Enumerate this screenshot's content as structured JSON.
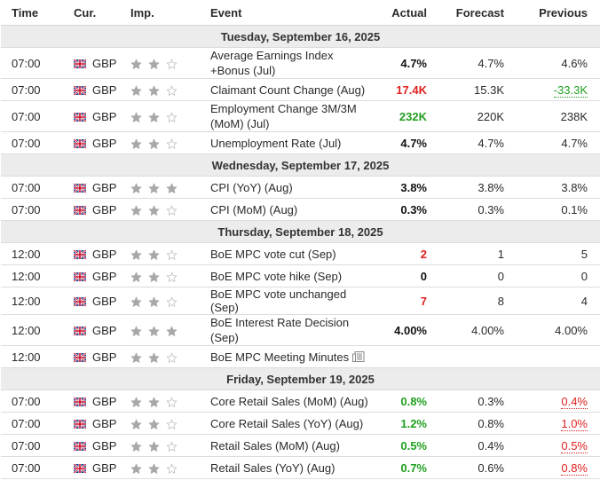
{
  "headers": {
    "time": "Time",
    "cur": "Cur.",
    "imp": "Imp.",
    "event": "Event",
    "actual": "Actual",
    "forecast": "Forecast",
    "previous": "Previous"
  },
  "days": [
    "Tuesday, September 16, 2025",
    "Wednesday, September 17, 2025",
    "Thursday, September 18, 2025",
    "Friday, September 19, 2025"
  ],
  "rows": [
    {
      "time": "07:00",
      "cur": "GBP",
      "stars": 2,
      "event": "Average Earnings Index +Bonus (Jul)",
      "actual": "4.7%",
      "actual_color": "black",
      "forecast": "4.7%",
      "previous": "4.6%",
      "prev_color": "none"
    },
    {
      "time": "07:00",
      "cur": "GBP",
      "stars": 2,
      "event": "Claimant Count Change (Aug)",
      "actual": "17.4K",
      "actual_color": "red",
      "forecast": "15.3K",
      "previous": "-33.3K",
      "prev_color": "green"
    },
    {
      "time": "07:00",
      "cur": "GBP",
      "stars": 2,
      "event": "Employment Change 3M/3M (MoM) (Jul)",
      "actual": "232K",
      "actual_color": "green",
      "forecast": "220K",
      "previous": "238K",
      "prev_color": "none"
    },
    {
      "time": "07:00",
      "cur": "GBP",
      "stars": 2,
      "event": "Unemployment Rate (Jul)",
      "actual": "4.7%",
      "actual_color": "black",
      "forecast": "4.7%",
      "previous": "4.7%",
      "prev_color": "none"
    },
    {
      "time": "07:00",
      "cur": "GBP",
      "stars": 3,
      "event": "CPI (YoY) (Aug)",
      "actual": "3.8%",
      "actual_color": "black",
      "forecast": "3.8%",
      "previous": "3.8%",
      "prev_color": "none"
    },
    {
      "time": "07:00",
      "cur": "GBP",
      "stars": 2,
      "event": "CPI (MoM) (Aug)",
      "actual": "0.3%",
      "actual_color": "black",
      "forecast": "0.3%",
      "previous": "0.1%",
      "prev_color": "none"
    },
    {
      "time": "12:00",
      "cur": "GBP",
      "stars": 2,
      "event": "BoE MPC vote cut (Sep)",
      "actual": "2",
      "actual_color": "red",
      "forecast": "1",
      "previous": "5",
      "prev_color": "none"
    },
    {
      "time": "12:00",
      "cur": "GBP",
      "stars": 2,
      "event": "BoE MPC vote hike (Sep)",
      "actual": "0",
      "actual_color": "black",
      "forecast": "0",
      "previous": "0",
      "prev_color": "none"
    },
    {
      "time": "12:00",
      "cur": "GBP",
      "stars": 2,
      "event": "BoE MPC vote unchanged (Sep)",
      "actual": "7",
      "actual_color": "red",
      "forecast": "8",
      "previous": "4",
      "prev_color": "none"
    },
    {
      "time": "12:00",
      "cur": "GBP",
      "stars": 3,
      "event": "BoE Interest Rate Decision (Sep)",
      "actual": "4.00%",
      "actual_color": "black",
      "forecast": "4.00%",
      "previous": "4.00%",
      "prev_color": "none"
    },
    {
      "time": "12:00",
      "cur": "GBP",
      "stars": 2,
      "event": "BoE MPC Meeting Minutes",
      "actual": "",
      "actual_color": "black",
      "forecast": "",
      "previous": "",
      "prev_color": "none",
      "doc_icon": "document-icon"
    },
    {
      "time": "07:00",
      "cur": "GBP",
      "stars": 2,
      "event": "Core Retail Sales (MoM) (Aug)",
      "actual": "0.8%",
      "actual_color": "green",
      "forecast": "0.3%",
      "previous": "0.4%",
      "prev_color": "red"
    },
    {
      "time": "07:00",
      "cur": "GBP",
      "stars": 2,
      "event": "Core Retail Sales (YoY) (Aug)",
      "actual": "1.2%",
      "actual_color": "green",
      "forecast": "0.8%",
      "previous": "1.0%",
      "prev_color": "red"
    },
    {
      "time": "07:00",
      "cur": "GBP",
      "stars": 2,
      "event": "Retail Sales (MoM) (Aug)",
      "actual": "0.5%",
      "actual_color": "green",
      "forecast": "0.4%",
      "previous": "0.5%",
      "prev_color": "red"
    },
    {
      "time": "07:00",
      "cur": "GBP",
      "stars": 2,
      "event": "Retail Sales (YoY) (Aug)",
      "actual": "0.7%",
      "actual_color": "green",
      "forecast": "0.6%",
      "previous": "0.8%",
      "prev_color": "red"
    }
  ],
  "colors": {
    "red": "#e02020",
    "green": "#20a020",
    "star_filled": "#a8a8a8",
    "star_empty": "#c4c4c4",
    "day_bg": "#ececec"
  }
}
